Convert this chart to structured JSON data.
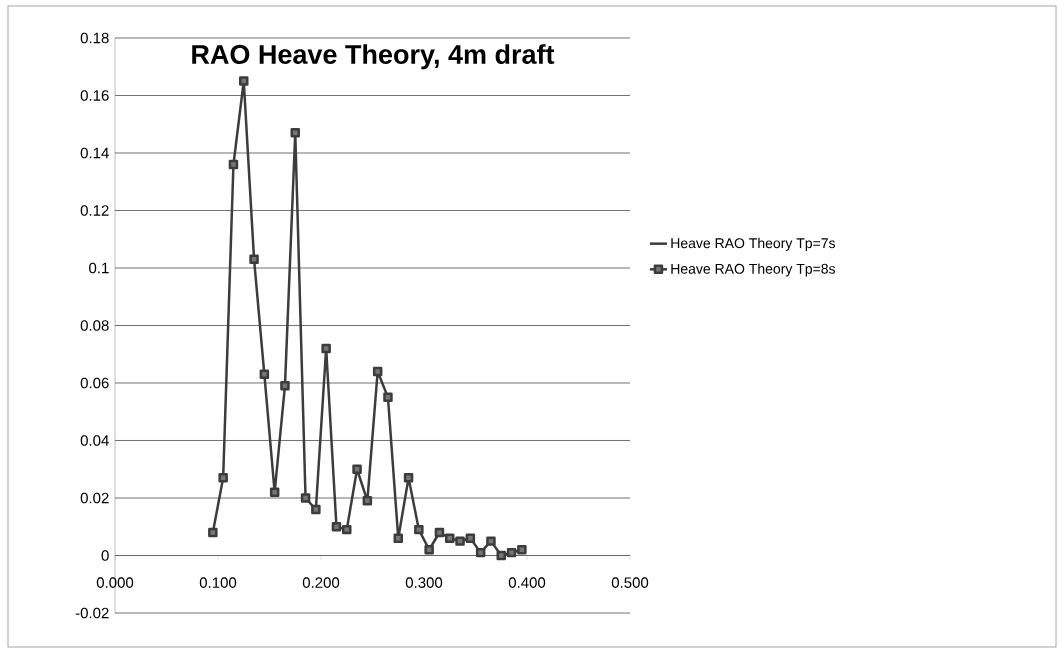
{
  "chart_data": {
    "type": "line",
    "title": "RAO Heave Theory, 4m draft",
    "x": [
      0.095,
      0.105,
      0.115,
      0.125,
      0.135,
      0.145,
      0.155,
      0.165,
      0.175,
      0.185,
      0.195,
      0.205,
      0.215,
      0.225,
      0.235,
      0.245,
      0.255,
      0.265,
      0.275,
      0.285,
      0.295,
      0.305,
      0.315,
      0.325,
      0.335,
      0.345,
      0.355,
      0.365,
      0.375,
      0.385,
      0.395
    ],
    "series": [
      {
        "name": "Heave RAO Theory Tp=7s",
        "color": "#3c3c3c",
        "marker": "none",
        "values": [
          null,
          null,
          null,
          null,
          null,
          null,
          null,
          null,
          null,
          null,
          null,
          null,
          null,
          null,
          null,
          null,
          null,
          null,
          null,
          null,
          null,
          null,
          null,
          null,
          null,
          null,
          null,
          null,
          null,
          null,
          null
        ]
      },
      {
        "name": "Heave RAO Theory Tp=8s",
        "color": "#3c3c3c",
        "marker": "square",
        "values": [
          0.008,
          0.027,
          0.136,
          0.165,
          0.103,
          0.063,
          0.022,
          0.059,
          0.147,
          0.02,
          0.016,
          0.072,
          0.01,
          0.009,
          0.03,
          0.019,
          0.064,
          0.055,
          0.006,
          0.027,
          0.009,
          0.002,
          0.008,
          0.006,
          0.005,
          0.006,
          0.001,
          0.005,
          0.0,
          0.001,
          0.002
        ]
      }
    ],
    "xlim": [
      0,
      0.5
    ],
    "xticks": [
      {
        "value": 0,
        "label": "0.000"
      },
      {
        "value": 0.1,
        "label": "0.100"
      },
      {
        "value": 0.2,
        "label": "0.200"
      },
      {
        "value": 0.3,
        "label": "0.300"
      },
      {
        "value": 0.4,
        "label": "0.400"
      },
      {
        "value": 0.5,
        "label": "0.500"
      }
    ],
    "ylim": [
      -0.02,
      0.18
    ],
    "yticks": [
      -0.02,
      0,
      0.02,
      0.04,
      0.06,
      0.08,
      0.1,
      0.12,
      0.14,
      0.16,
      0.18
    ],
    "grid": "y",
    "legend": "right",
    "line_style": "solid"
  }
}
